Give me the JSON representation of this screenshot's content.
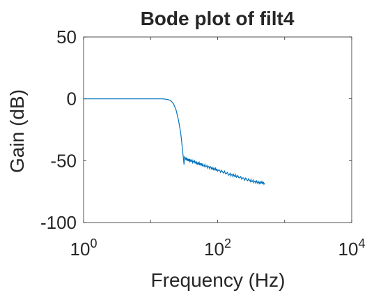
{
  "chart_data": {
    "type": "line",
    "title": "Bode plot of filt4",
    "xlabel": "Frequency (Hz)",
    "ylabel": "Gain (dB)",
    "xscale": "log",
    "xlim": [
      1,
      10000
    ],
    "ylim": [
      -100,
      50
    ],
    "grid": false,
    "x_ticks": [
      {
        "base": "10",
        "exp": "0"
      },
      {
        "base": "10",
        "exp": "2"
      },
      {
        "base": "10",
        "exp": "4"
      }
    ],
    "y_ticks": [
      "50",
      "0",
      "-50",
      "-100"
    ],
    "y_tick_values": [
      50,
      0,
      -50,
      -100
    ],
    "colors": {
      "line": "#0072BD",
      "axes": "#262626"
    },
    "series": [
      {
        "x": [
          1,
          5,
          10,
          15,
          18,
          20,
          22,
          24,
          26,
          28,
          29,
          30,
          31,
          31.5,
          32,
          33,
          35,
          40,
          50,
          60,
          80,
          100,
          150,
          200,
          300,
          400,
          500
        ],
        "y": [
          0,
          0,
          0,
          0,
          -0.5,
          -1.5,
          -4,
          -9,
          -17,
          -27,
          -34,
          -42,
          -49,
          -53,
          -47,
          -48,
          -49,
          -50,
          -52,
          -53.5,
          -56,
          -57.5,
          -61,
          -63,
          -66,
          -67.5,
          -68
        ]
      }
    ]
  }
}
